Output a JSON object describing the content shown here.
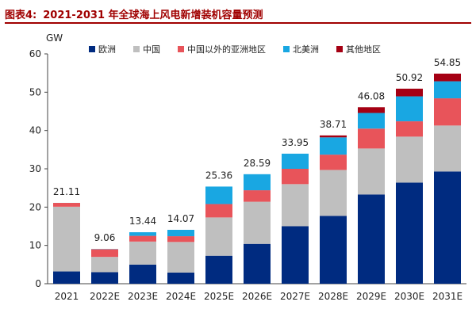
{
  "figure": {
    "label": "图表4:",
    "title": "2021-2031 年全球海上风电新增装机容量预测"
  },
  "chart_data": {
    "type": "bar",
    "stacked": true,
    "title": "2021-2031 年全球海上风电新增装机容量预测",
    "ylabel": "GW",
    "xlabel": "",
    "ylim": [
      0,
      60
    ],
    "yticks": [
      0,
      10,
      20,
      30,
      40,
      50,
      60
    ],
    "categories": [
      "2021",
      "2022E",
      "2023E",
      "2024E",
      "2025E",
      "2026E",
      "2027E",
      "2028E",
      "2029E",
      "2030E",
      "2031E"
    ],
    "series": [
      {
        "name": "欧洲",
        "color": "#002b80",
        "values": [
          3.2,
          3.0,
          5.0,
          2.9,
          7.3,
          10.4,
          15.0,
          17.7,
          23.3,
          26.4,
          29.3
        ]
      },
      {
        "name": "中国",
        "color": "#bfbfbf",
        "values": [
          16.9,
          4.0,
          6.0,
          8.0,
          10.0,
          11.0,
          11.0,
          12.0,
          12.0,
          12.0,
          12.0
        ]
      },
      {
        "name": "中国以外的亚洲地区",
        "color": "#e8545a",
        "values": [
          1.0,
          2.0,
          1.5,
          1.5,
          3.5,
          3.0,
          4.0,
          4.0,
          5.2,
          4.0,
          7.1
        ]
      },
      {
        "name": "北美洲",
        "color": "#19a7e2",
        "values": [
          0.01,
          0.06,
          0.94,
          1.67,
          4.56,
          4.19,
          3.95,
          4.51,
          4.08,
          6.52,
          4.45
        ]
      },
      {
        "name": "其他地区",
        "color": "#a50013",
        "values": [
          0.0,
          0.0,
          0.0,
          0.0,
          0.0,
          0.0,
          0.0,
          0.5,
          1.5,
          2.0,
          2.0
        ]
      }
    ],
    "totals": [
      "21.11",
      "9.06",
      "13.44",
      "14.07",
      "25.36",
      "28.59",
      "33.95",
      "38.71",
      "46.08",
      "50.92",
      "54.85"
    ],
    "legend_position": "top",
    "grid": false
  }
}
